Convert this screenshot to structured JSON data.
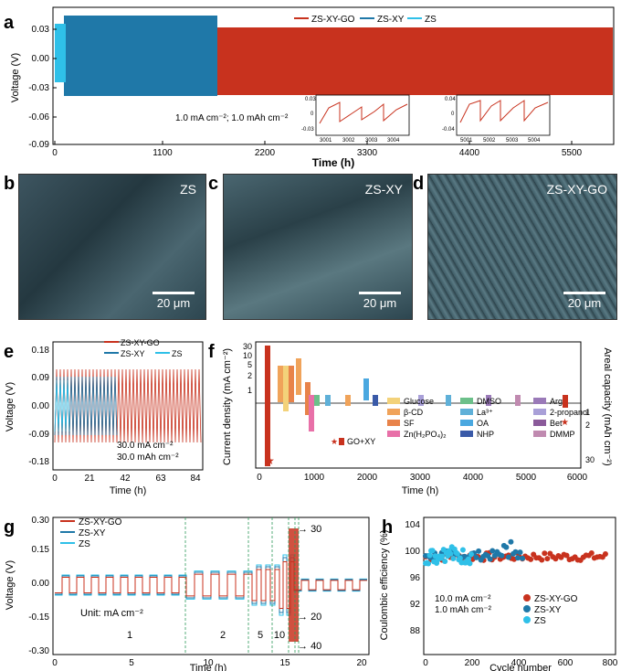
{
  "panels": {
    "a": "a",
    "b": "b",
    "c": "c",
    "d": "d",
    "e": "e",
    "f": "f",
    "g": "g",
    "h": "h"
  },
  "colors": {
    "zsxygo": "#c8321e",
    "zsxy": "#1f78a8",
    "zs": "#2fc0e8"
  },
  "panel_a": {
    "ylabel": "Voltage (V)",
    "xlabel": "Time (h)",
    "yticks": [
      "0.03",
      "0.00",
      "-0.03",
      "-0.06",
      "-0.09"
    ],
    "xticks": [
      "0",
      "1100",
      "2200",
      "3300",
      "4400",
      "5500"
    ],
    "legend": [
      "ZS-XY-GO",
      "ZS-XY",
      "ZS"
    ],
    "condition": "1.0 mA cm⁻²; 1.0 mAh cm⁻²",
    "inset1": {
      "yticks": [
        "0.03",
        "0",
        "-0.03"
      ],
      "xticks": [
        "3001",
        "3002",
        "3003",
        "3004"
      ]
    },
    "inset2": {
      "yticks": [
        "0.04",
        "0",
        "-0.04"
      ],
      "xticks": [
        "5001",
        "5002",
        "5003",
        "5004"
      ]
    }
  },
  "sem": {
    "b": {
      "title": "ZS",
      "scale": "20 μm"
    },
    "c": {
      "title": "ZS-XY",
      "scale": "20 μm"
    },
    "d": {
      "title": "ZS-XY-GO",
      "scale": "20 μm"
    }
  },
  "panel_e": {
    "ylabel": "Voltage (V)",
    "xlabel": "Time (h)",
    "yticks": [
      "0.18",
      "0.09",
      "0.00",
      "-0.09",
      "-0.18"
    ],
    "xticks": [
      "0",
      "21",
      "42",
      "63",
      "84"
    ],
    "legend": [
      "ZS-XY-GO",
      "ZS-XY",
      "ZS"
    ],
    "cond1": "30.0 mA cm⁻²",
    "cond2": "30.0 mAh cm⁻²"
  },
  "panel_f": {
    "ylabel": "Current density (mA cm⁻²)",
    "y2label": "Areal capacity (mAh cm⁻²)",
    "xlabel": "Time (h)",
    "yticks": [
      "30",
      "10",
      "5",
      "2",
      "1"
    ],
    "y2ticks": [
      "1",
      "2",
      "30"
    ],
    "xticks": [
      "0",
      "1000",
      "2000",
      "3000",
      "4000",
      "5000",
      "6000"
    ],
    "marker_label": "GO+XY",
    "legend": [
      "Glucose",
      "β-CD",
      "SF",
      "Zn(H₂PO₄)₂",
      "DMSO",
      "La³⁺",
      "OA",
      "NHP",
      "Arg",
      "2-propanol",
      "Bet",
      "DMMP"
    ],
    "legend_colors": [
      "#f3d27a",
      "#f0a35a",
      "#e8834a",
      "#e870a8",
      "#6cc08a",
      "#5fb0d8",
      "#4aa8e0",
      "#3a5aa8",
      "#9a7ab8",
      "#a9a0d8",
      "#8a5a9a",
      "#c08ab0"
    ]
  },
  "panel_g": {
    "ylabel": "Voltage (V)",
    "xlabel": "Time (h)",
    "yticks": [
      "0.30",
      "0.15",
      "0.00",
      "-0.15",
      "-0.30"
    ],
    "xticks": [
      "0",
      "5",
      "10",
      "15",
      "20"
    ],
    "legend": [
      "ZS-XY-GO",
      "ZS-XY",
      "ZS"
    ],
    "unit": "Unit: mA cm⁻²",
    "rates": [
      "1",
      "2",
      "5",
      "10"
    ],
    "arrows": [
      "30",
      "20",
      "40"
    ]
  },
  "panel_h": {
    "ylabel": "Coulombic efficiency (%)",
    "xlabel": "Cycle number",
    "yticks": [
      "104",
      "100",
      "96",
      "92",
      "88"
    ],
    "xticks": [
      "0",
      "200",
      "400",
      "600",
      "800"
    ],
    "cond1": "10.0 mA cm⁻²",
    "cond2": "1.0 mAh cm⁻²",
    "legend": [
      "ZS-XY-GO",
      "ZS-XY",
      "ZS"
    ]
  }
}
